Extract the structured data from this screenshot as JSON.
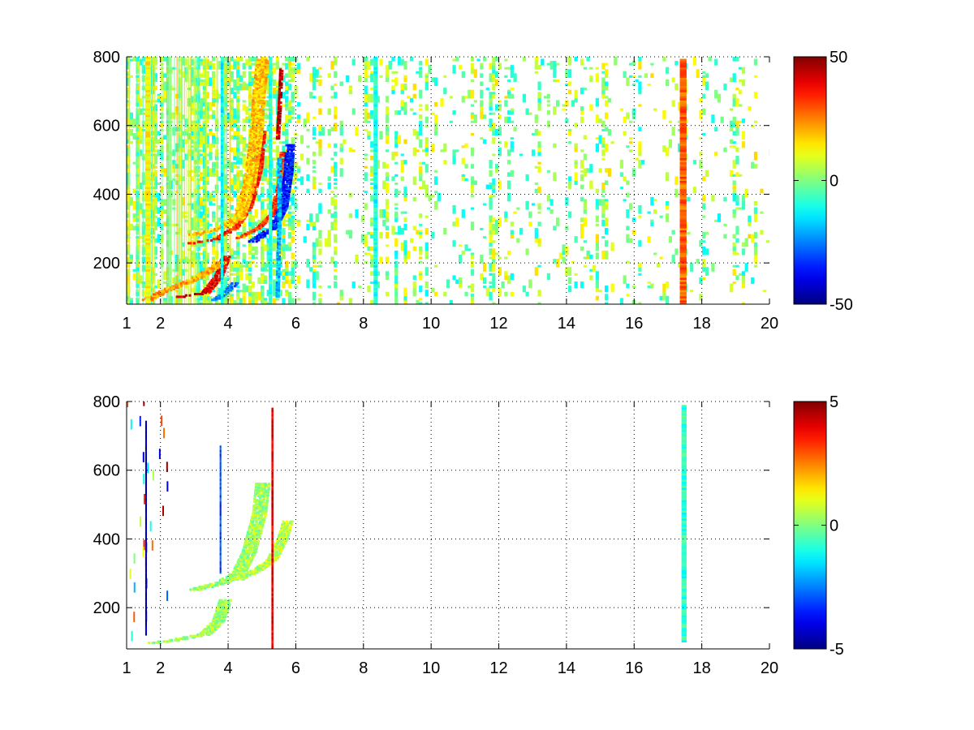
{
  "chart_data": [
    {
      "type": "heatmap",
      "title": "",
      "xlabel": "",
      "ylabel": "",
      "xlim": [
        1,
        20
      ],
      "ylim": [
        80,
        800
      ],
      "xticks": [
        "1",
        "2",
        "4",
        "6",
        "8",
        "10",
        "12",
        "14",
        "16",
        "18",
        "20"
      ],
      "yticks": [
        "200",
        "400",
        "600",
        "800"
      ],
      "grid": true,
      "colorbar": {
        "min": -50,
        "max": 50,
        "ticks": [
          "50",
          "0",
          "-50"
        ],
        "colormap": "jet"
      },
      "features": [
        {
          "kind": "curve",
          "value": 40,
          "width": 0.22,
          "points": [
            [
              1.7,
              95
            ],
            [
              2.5,
              98
            ],
            [
              3.3,
              110
            ],
            [
              3.7,
              160
            ],
            [
              3.9,
              215
            ]
          ]
        },
        {
          "kind": "curve",
          "value": 22,
          "width": 0.3,
          "points": [
            [
              1.6,
              90
            ],
            [
              2.2,
              120
            ],
            [
              3.0,
              150
            ],
            [
              3.5,
              180
            ],
            [
              3.8,
              200
            ]
          ]
        },
        {
          "kind": "curve",
          "value": -25,
          "width": 0.2,
          "points": [
            [
              3.6,
              90
            ],
            [
              3.9,
              110
            ],
            [
              4.2,
              140
            ]
          ]
        },
        {
          "kind": "curve",
          "value": 35,
          "width": 0.2,
          "points": [
            [
              2.9,
              255
            ],
            [
              3.6,
              265
            ],
            [
              4.2,
              300
            ],
            [
              4.6,
              360
            ],
            [
              4.9,
              470
            ],
            [
              5.0,
              580
            ]
          ]
        },
        {
          "kind": "curve",
          "value": 18,
          "width": 0.35,
          "points": [
            [
              3.0,
              280
            ],
            [
              3.8,
              300
            ],
            [
              4.3,
              330
            ],
            [
              4.6,
              420
            ],
            [
              4.8,
              560
            ],
            [
              4.9,
              700
            ],
            [
              5.0,
              790
            ]
          ]
        },
        {
          "kind": "curve",
          "value": 32,
          "width": 0.15,
          "points": [
            [
              4.3,
              270
            ],
            [
              4.9,
              300
            ],
            [
              5.3,
              340
            ],
            [
              5.5,
              420
            ],
            [
              5.6,
              520
            ]
          ]
        },
        {
          "kind": "curve",
          "value": -35,
          "width": 0.22,
          "points": [
            [
              4.7,
              260
            ],
            [
              5.3,
              300
            ],
            [
              5.6,
              360
            ],
            [
              5.75,
              460
            ],
            [
              5.8,
              540
            ]
          ]
        },
        {
          "kind": "curve",
          "value": 45,
          "width": 0.08,
          "points": [
            [
              5.45,
              560
            ],
            [
              5.5,
              650
            ],
            [
              5.55,
              760
            ]
          ]
        },
        {
          "kind": "curve",
          "value": -20,
          "width": 0.1,
          "points": [
            [
              5.45,
              100
            ],
            [
              5.5,
              300
            ],
            [
              5.5,
              500
            ]
          ]
        },
        {
          "kind": "band",
          "value": 28,
          "x": [
            17.35,
            17.55
          ],
          "y": [
            80,
            790
          ]
        },
        {
          "kind": "band",
          "value": 12,
          "x": [
            1.55,
            1.7
          ],
          "y": [
            80,
            800
          ]
        },
        {
          "kind": "band",
          "value": -12,
          "x": [
            3.78,
            3.86
          ],
          "y": [
            80,
            800
          ]
        },
        {
          "kind": "band",
          "value": -10,
          "x": [
            8.3,
            8.42
          ],
          "y": [
            80,
            800
          ]
        },
        {
          "kind": "band",
          "value": -8,
          "x": [
            5.2,
            5.3
          ],
          "y": [
            80,
            800
          ]
        }
      ]
    },
    {
      "type": "heatmap",
      "title": "",
      "xlabel": "",
      "ylabel": "",
      "xlim": [
        1,
        20
      ],
      "ylim": [
        80,
        800
      ],
      "xticks": [
        "1",
        "2",
        "4",
        "6",
        "8",
        "10",
        "12",
        "14",
        "16",
        "18",
        "20"
      ],
      "yticks": [
        "200",
        "400",
        "600",
        "800"
      ],
      "grid": true,
      "colorbar": {
        "min": -5,
        "max": 5,
        "ticks": [
          "5",
          "0",
          "-5"
        ],
        "colormap": "jet"
      },
      "features": [
        {
          "kind": "curve",
          "value": 0.3,
          "width": 0.35,
          "points": [
            [
              1.8,
              95
            ],
            [
              2.5,
              105
            ],
            [
              3.3,
              120
            ],
            [
              3.7,
              160
            ],
            [
              3.9,
              220
            ]
          ]
        },
        {
          "kind": "curve",
          "value": 0.3,
          "width": 0.4,
          "points": [
            [
              3.0,
              250
            ],
            [
              3.8,
              270
            ],
            [
              4.3,
              300
            ],
            [
              4.6,
              360
            ],
            [
              4.9,
              470
            ],
            [
              5.0,
              560
            ]
          ]
        },
        {
          "kind": "curve",
          "value": 0.5,
          "width": 0.3,
          "points": [
            [
              4.3,
              280
            ],
            [
              4.9,
              310
            ],
            [
              5.3,
              340
            ],
            [
              5.6,
              400
            ],
            [
              5.75,
              450
            ]
          ]
        },
        {
          "kind": "band",
          "value": -0.8,
          "x": [
            17.4,
            17.55
          ],
          "y": [
            100,
            790
          ]
        },
        {
          "kind": "band",
          "value": 4.0,
          "x": [
            5.28,
            5.34
          ],
          "y": [
            80,
            780
          ]
        },
        {
          "kind": "band",
          "value": -4.5,
          "x": [
            1.55,
            1.6
          ],
          "y": [
            120,
            740
          ]
        },
        {
          "kind": "band",
          "value": -3.0,
          "x": [
            3.75,
            3.8
          ],
          "y": [
            300,
            670
          ]
        }
      ]
    }
  ]
}
